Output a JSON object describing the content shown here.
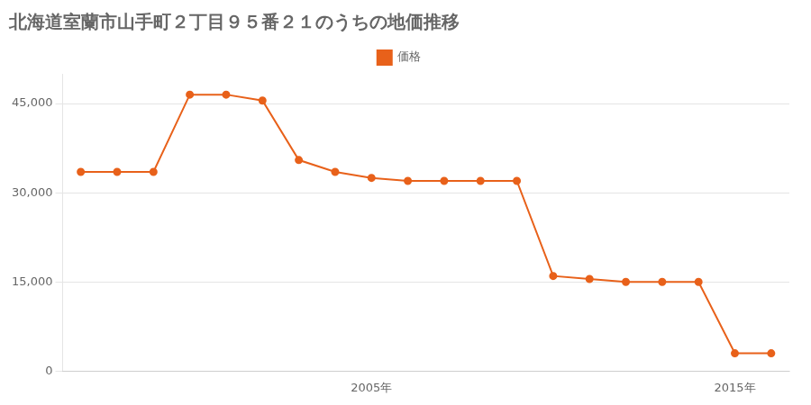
{
  "chart_data": {
    "type": "line",
    "title": "北海道室蘭市山手町２丁目９５番２１のうちの地価推移",
    "x": [
      1997,
      1998,
      1999,
      2000,
      2001,
      2002,
      2003,
      2004,
      2005,
      2006,
      2007,
      2008,
      2009,
      2010,
      2011,
      2012,
      2013,
      2014,
      2015,
      2016
    ],
    "series": [
      {
        "name": "価格",
        "color": "#E8611A",
        "marker": "circle",
        "values": [
          33500,
          33500,
          33500,
          46500,
          46500,
          45500,
          35500,
          33500,
          32500,
          32000,
          32000,
          32000,
          32000,
          16000,
          15500,
          15000,
          15000,
          15000,
          3000,
          3000
        ]
      }
    ],
    "xlim": [
      1996.5,
      2016.5
    ],
    "xticks": [
      {
        "value": 2005,
        "label": "2005年"
      },
      {
        "value": 2015,
        "label": "2015年"
      }
    ],
    "ylim": [
      0,
      50000
    ],
    "yticks": [
      0,
      {
        "value": 15000,
        "label": "15,000"
      },
      {
        "value": 30000,
        "label": "30,000"
      },
      {
        "value": 45000,
        "label": "45,000"
      }
    ],
    "grid": "y",
    "legend": "top"
  }
}
